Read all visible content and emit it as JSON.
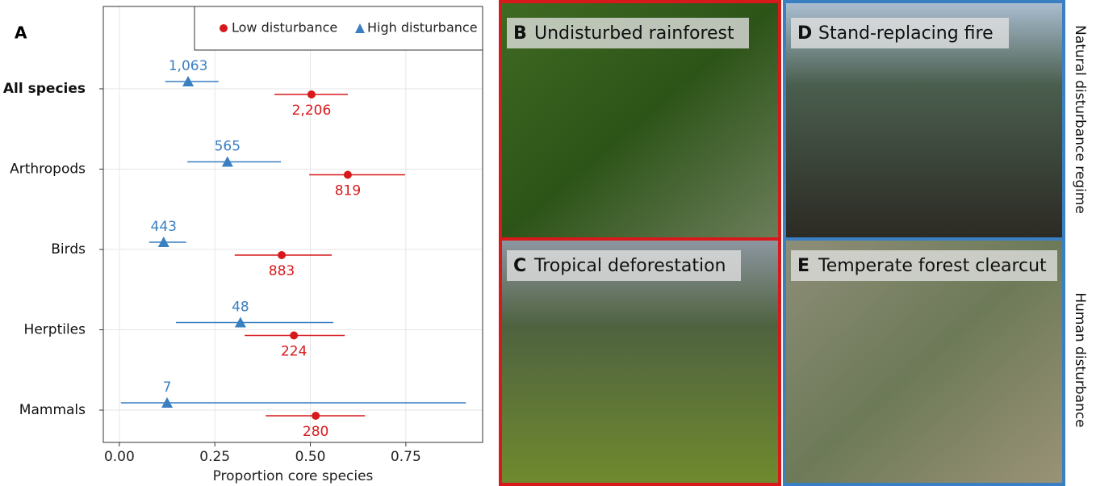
{
  "chart_data": {
    "type": "dot-errorbar",
    "panel_label": "A",
    "xlabel": "Proportion core species",
    "categories": [
      "All species",
      "Arthropods",
      "Birds",
      "Herptiles",
      "Mammals"
    ],
    "xlim": [
      -0.042,
      0.951
    ],
    "xticks": [
      {
        "value": 0,
        "label": "0.00"
      },
      {
        "value": 0.25,
        "label": "0.25"
      },
      {
        "value": 0.5,
        "label": "0.50"
      },
      {
        "value": 0.75,
        "label": "0.75"
      }
    ],
    "grid": true,
    "legend": "top-right",
    "series": [
      {
        "name": "Low disturbance",
        "color": "#d7191c",
        "marker": "circle",
        "values": [
          0.503,
          0.598,
          0.425,
          0.457,
          0.514
        ],
        "lower": [
          0.406,
          0.497,
          0.302,
          0.328,
          0.383
        ],
        "upper": [
          0.598,
          0.748,
          0.556,
          0.59,
          0.643
        ],
        "counts": [
          "2,206",
          "819",
          "883",
          "224",
          "280"
        ]
      },
      {
        "name": "High disturbance",
        "color": "#3a7fc1",
        "marker": "triangle",
        "values": [
          0.18,
          0.283,
          0.116,
          0.317,
          0.125
        ],
        "lower": [
          0.12,
          0.178,
          0.078,
          0.148,
          0.004
        ],
        "upper": [
          0.26,
          0.423,
          0.175,
          0.56,
          0.907
        ],
        "counts": [
          "1,063",
          "565",
          "443",
          "48",
          "7"
        ]
      }
    ]
  },
  "photos": {
    "panels": [
      {
        "letter": "B",
        "title": "Undisturbed rainforest"
      },
      {
        "letter": "C",
        "title": "Tropical deforestation"
      },
      {
        "letter": "D",
        "title": "Stand-replacing fire"
      },
      {
        "letter": "E",
        "title": "Temperate forest clearcut"
      }
    ],
    "side_labels": [
      "Natural disturbance regime",
      "Human disturbance"
    ]
  }
}
